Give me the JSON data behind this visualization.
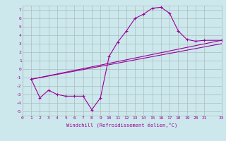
{
  "xlabel": "Windchill (Refroidissement éolien,°C)",
  "ylabel": "",
  "xlim": [
    0,
    23
  ],
  "ylim": [
    -5.5,
    7.5
  ],
  "xticks": [
    0,
    1,
    2,
    3,
    4,
    5,
    6,
    7,
    8,
    9,
    10,
    11,
    12,
    13,
    14,
    15,
    16,
    17,
    18,
    19,
    20,
    21,
    23
  ],
  "yticks": [
    -5,
    -4,
    -3,
    -2,
    -1,
    0,
    1,
    2,
    3,
    4,
    5,
    6,
    7
  ],
  "bg_color": "#cce8ec",
  "grid_color": "#aabcbe",
  "line_color": "#990099",
  "curve1_x": [
    1,
    2,
    3,
    4,
    5,
    6,
    7,
    8,
    9,
    10,
    11,
    12,
    13,
    14,
    15,
    16,
    17,
    18,
    19,
    20,
    21,
    23
  ],
  "curve1_y": [
    -1.2,
    -3.4,
    -2.5,
    -3.0,
    -3.2,
    -3.2,
    -3.2,
    -4.8,
    -3.4,
    1.5,
    3.2,
    4.5,
    6.0,
    6.5,
    7.2,
    7.3,
    6.6,
    4.5,
    3.5,
    3.3,
    3.4,
    3.4
  ],
  "curve2_x": [
    1,
    23
  ],
  "curve2_y": [
    -1.2,
    3.4
  ],
  "curve3_x": [
    1,
    23
  ],
  "curve3_y": [
    -1.2,
    3.0
  ]
}
